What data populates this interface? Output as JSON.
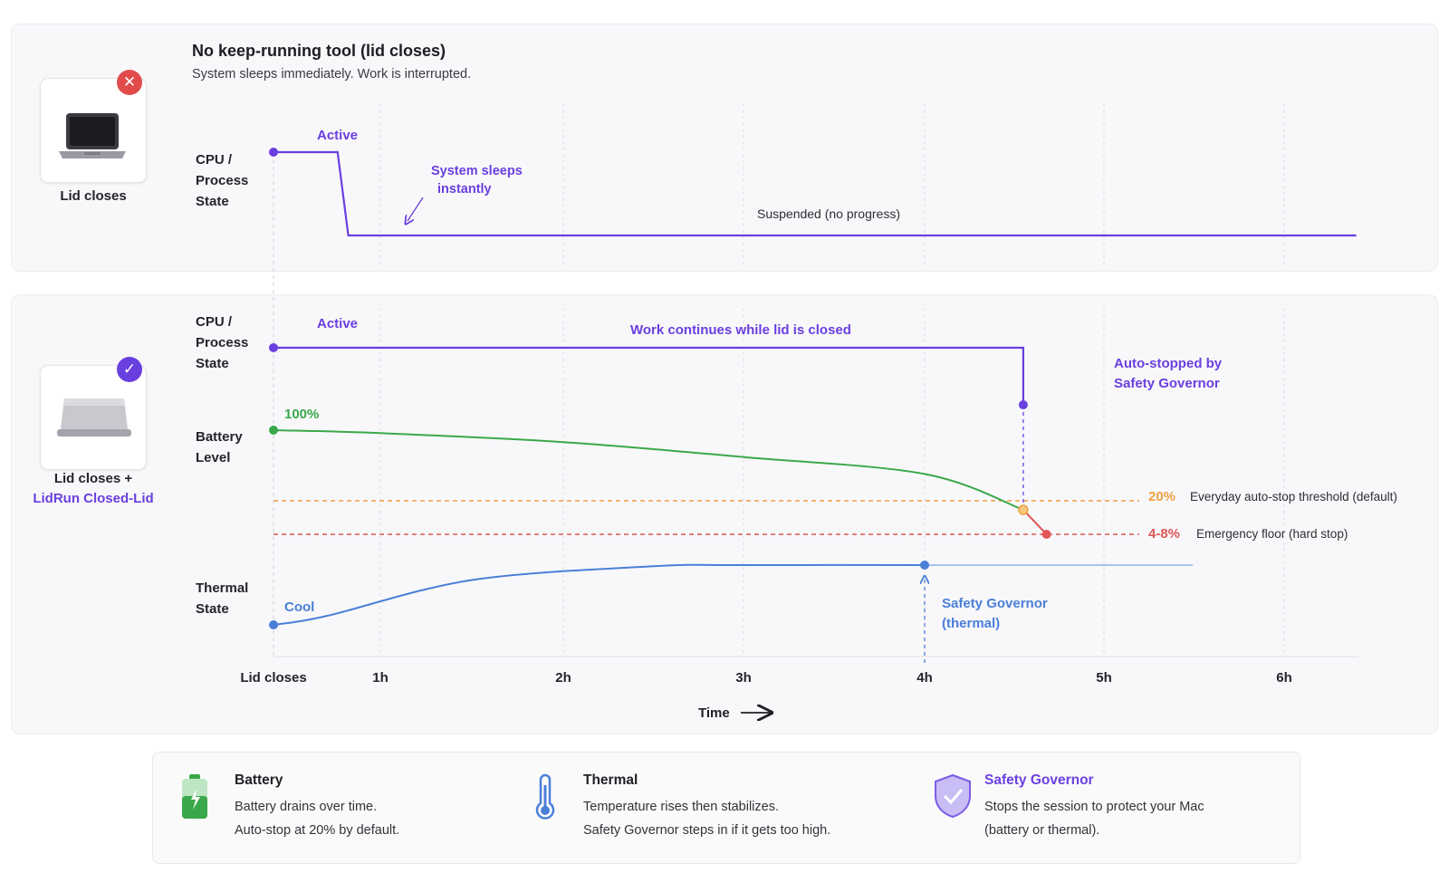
{
  "top": {
    "title": "No keep-running tool (lid closes)",
    "subtitle": "System sleeps immediately. Work is interrupted.",
    "card_label": "Lid closes",
    "row_label": [
      "CPU /",
      "Process",
      "State"
    ],
    "active_label": "Active",
    "sleep_note": [
      "System sleeps",
      "instantly"
    ],
    "suspended_label": "Suspended (no progress)",
    "badge_icon": "x-icon"
  },
  "bottom": {
    "card_label_line1": "Lid closes +",
    "card_label_line2": "LidRun Closed-Lid",
    "badge_icon": "check-icon",
    "cpu_label": [
      "CPU /",
      "Process",
      "State"
    ],
    "active_label": "Active",
    "work_label": "Work continues while lid is closed",
    "auto_stop_note": [
      "Auto-stopped by",
      "Safety Governor"
    ],
    "battery_label": [
      "Battery",
      "Level"
    ],
    "battery_start": "100%",
    "threshold_value": "20%",
    "threshold_text": "Everyday auto-stop threshold (default)",
    "floor_value": "4-8%",
    "floor_text": "Emergency floor (hard stop)",
    "thermal_label": [
      "Thermal",
      "State"
    ],
    "cool_label": "Cool",
    "governor_note": [
      "Safety Governor",
      "(thermal)"
    ],
    "time_label": "Time"
  },
  "chart_data": {
    "type": "line",
    "x_ticks": [
      "Lid closes",
      "1h",
      "2h",
      "3h",
      "4h",
      "5h",
      "6h"
    ],
    "x_tick_hours": [
      0,
      1,
      2,
      3,
      4,
      5,
      6
    ],
    "series": [
      {
        "name": "CPU / Process State (no tool)",
        "points": [
          [
            0,
            1
          ],
          [
            0.6,
            1
          ],
          [
            0.7,
            0
          ],
          [
            6.4,
            0
          ]
        ]
      },
      {
        "name": "CPU / Process State (LidRun)",
        "points": [
          [
            0,
            1
          ],
          [
            4.55,
            1
          ],
          [
            4.55,
            0.35
          ]
        ]
      },
      {
        "name": "Battery Level",
        "points": [
          [
            0,
            100
          ],
          [
            1,
            97
          ],
          [
            2,
            88
          ],
          [
            3,
            73
          ],
          [
            4,
            56
          ],
          [
            4.55,
            20
          ],
          [
            4.68,
            6
          ]
        ]
      },
      {
        "name": "Thermal State",
        "points": [
          [
            0,
            0
          ],
          [
            0.5,
            0.15
          ],
          [
            1.5,
            0.75
          ],
          [
            2.5,
            0.98
          ],
          [
            3,
            1
          ],
          [
            4,
            1
          ],
          [
            5,
            1
          ]
        ]
      }
    ],
    "thresholds": [
      {
        "label": "20%",
        "text": "Everyday auto-stop threshold (default)",
        "color": "#f0a040"
      },
      {
        "label": "4-8%",
        "text": "Emergency floor (hard stop)",
        "color": "#e05656"
      }
    ],
    "xlabel": "Time"
  },
  "legend": [
    {
      "title": "Battery",
      "lines": [
        "Battery drains over time.",
        "Auto-stop at 20% by default."
      ],
      "icon": "battery-icon",
      "color": "#2e7d32"
    },
    {
      "title": "Thermal",
      "lines": [
        "Temperature rises then stabilizes.",
        "Safety Governor steps in if it gets too high."
      ],
      "icon": "thermometer-icon",
      "color": "#1f1f24"
    },
    {
      "title": "Safety Governor",
      "lines": [
        "Stops the session to protect your Mac",
        "(battery or thermal)."
      ],
      "icon": "shield-icon",
      "color": "#6a3fe0"
    }
  ],
  "colors": {
    "purple": "#6a3fe0",
    "green": "#3aa84a",
    "blue": "#4a7fd8",
    "orange": "#f0a040",
    "red": "#e05656",
    "badge_red": "#e14b4b"
  }
}
